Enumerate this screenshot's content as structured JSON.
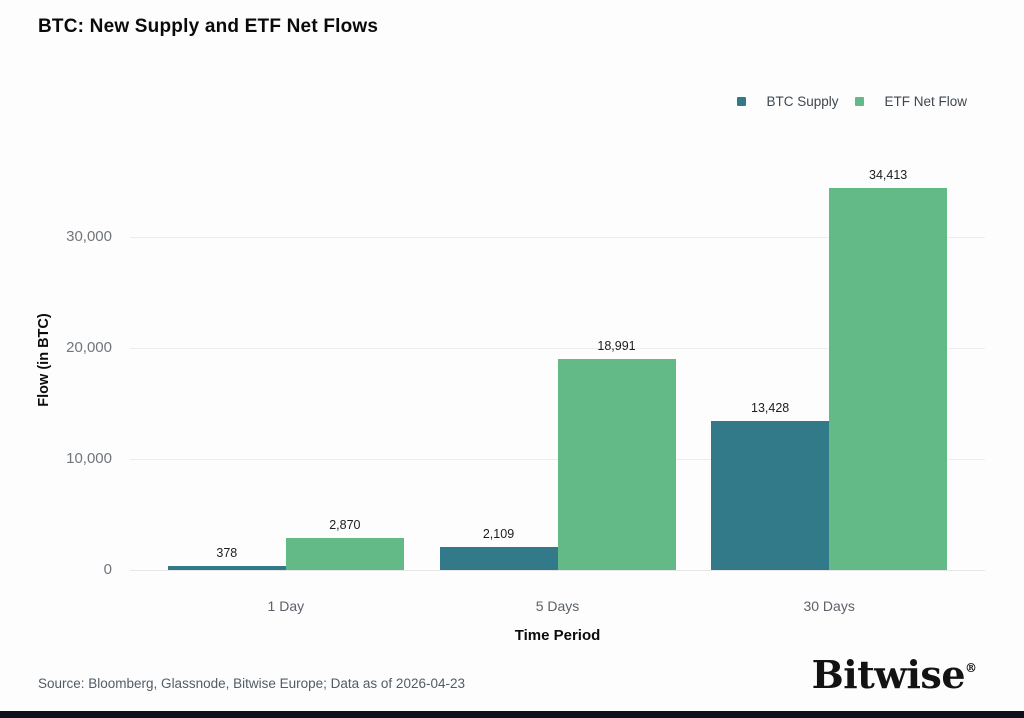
{
  "page": {
    "title": "BTC: New Supply and ETF Net Flows"
  },
  "legend": {
    "items": [
      {
        "label": "BTC Supply",
        "color": "#327a8a"
      },
      {
        "label": "ETF Net Flow",
        "color": "#63ba87"
      }
    ]
  },
  "chart_data": {
    "type": "bar",
    "title": "BTC: New Supply and ETF Net Flows",
    "categories": [
      "1 Day",
      "5 Days",
      "30 Days"
    ],
    "series": [
      {
        "name": "BTC Supply",
        "color": "#327a8a",
        "values": [
          378,
          2109,
          13428
        ],
        "labels": [
          "378",
          "2,109",
          "13,428"
        ]
      },
      {
        "name": "ETF Net Flow",
        "color": "#63ba87",
        "values": [
          2870,
          18991,
          34413
        ],
        "labels": [
          "2,870",
          "18,991",
          "34,413"
        ]
      }
    ],
    "xlabel": "Time Period",
    "ylabel": "Flow (in BTC)",
    "ylim": [
      0,
      37840
    ],
    "yticks": [
      {
        "value": 0,
        "label": "0"
      },
      {
        "value": 10000,
        "label": "10,000"
      },
      {
        "value": 20000,
        "label": "20,000"
      },
      {
        "value": 30000,
        "label": "30,000"
      }
    ],
    "grid": true,
    "legend_position": "top-right"
  },
  "footer": {
    "source": "Source: Bloomberg, Glassnode, Bitwise Europe; Data as of 2026-04-23",
    "logo": "Bitwise",
    "logo_registered": "®"
  }
}
